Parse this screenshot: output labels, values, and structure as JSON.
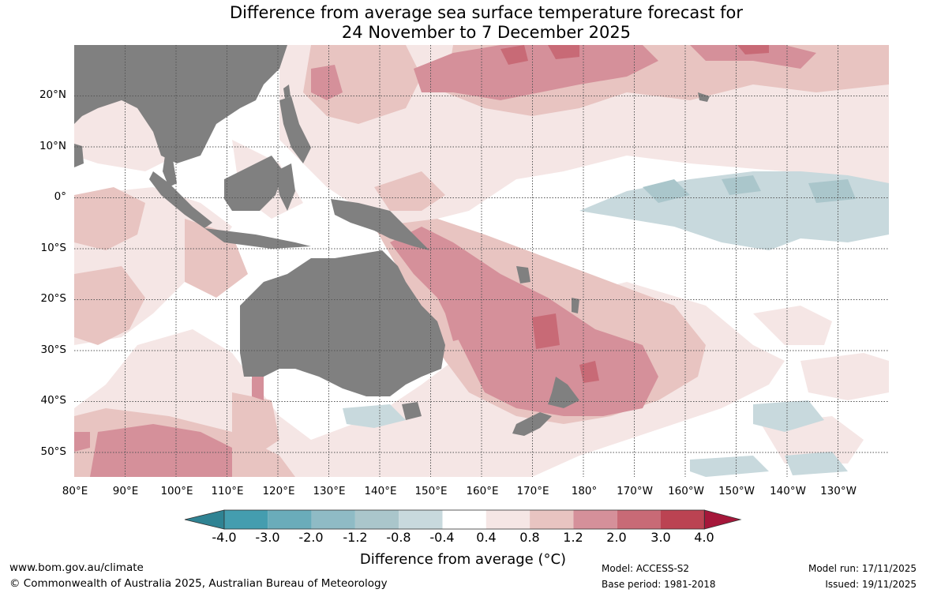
{
  "title": {
    "line1": "Difference from average sea surface temperature forecast for",
    "line2": "24 November to 7 December 2025"
  },
  "colors": {
    "land": "#808080",
    "ocean": "#ffffff",
    "pos": [
      "#f5e6e5",
      "#e8c4c1",
      "#d5909a",
      "#c86a76",
      "#bb4352"
    ],
    "neg": [
      "#c8d9dd"
    ],
    "grid": "#555555"
  },
  "axes": {
    "lat_labels": [
      "20°N",
      "10°N",
      "0°",
      "10°S",
      "20°S",
      "30°S",
      "40°S",
      "50°S"
    ],
    "lon_labels": [
      "80°E",
      "90°E",
      "100°E",
      "110°E",
      "120°E",
      "130°E",
      "140°E",
      "150°E",
      "160°E",
      "170°E",
      "180°",
      "170°W",
      "160°W",
      "150°W",
      "140°W",
      "130°W"
    ]
  },
  "colorbar": {
    "levels": [
      "-4.0",
      "-3.0",
      "-2.0",
      "-1.2",
      "-0.8",
      "-0.4",
      "0.4",
      "0.8",
      "1.2",
      "2.0",
      "3.0",
      "4.0"
    ],
    "colors": [
      "#449daf",
      "#6aacba",
      "#8fbbc5",
      "#aac6cb",
      "#c8d9dd",
      "#ffffff",
      "#f5e6e5",
      "#e8c4c1",
      "#d5909a",
      "#c86a76",
      "#bb4352"
    ],
    "low_color": "#2f8393",
    "high_color": "#a5173a",
    "label": "Difference from average (°C)"
  },
  "footer": {
    "website": "www.bom.gov.au/climate",
    "copyright": "© Commonwealth of Australia 2025, Australian Bureau of Meteorology",
    "model": "Model: ACCESS-S2",
    "base_period": "Base period: 1981-2018",
    "model_run": "Model run: 17/11/2025",
    "issued": "Issued: 19/11/2025"
  }
}
